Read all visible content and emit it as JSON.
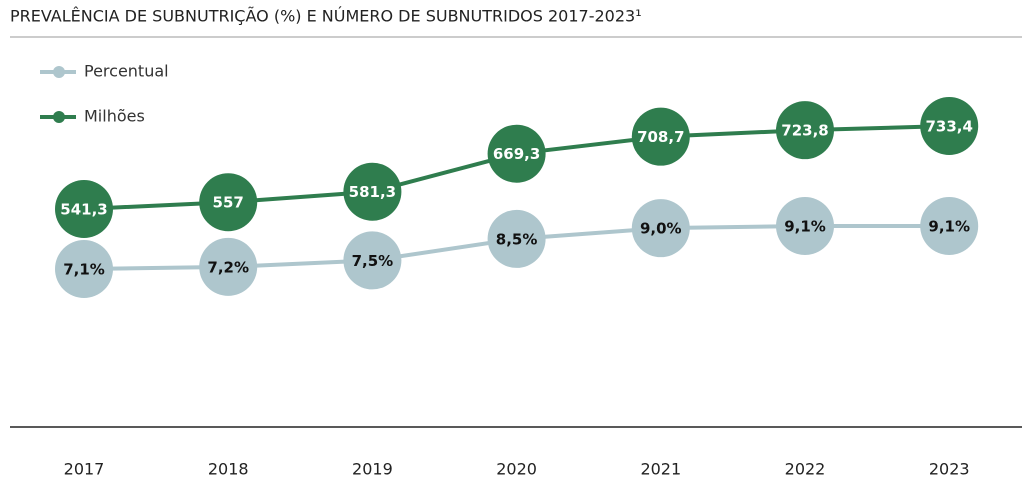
{
  "chart_data": {
    "type": "line",
    "title": "PREVALÊNCIA DE SUBNUTRIÇÃO (%) E NÚMERO DE SUBNUTRIDOS 2017-2023¹",
    "categories": [
      "2017",
      "2018",
      "2019",
      "2020",
      "2021",
      "2022",
      "2023"
    ],
    "series": [
      {
        "name": "Percentual",
        "color": "#aec6cd",
        "axis": "y2",
        "values": [
          7.1,
          7.2,
          7.5,
          8.5,
          9.0,
          9.1,
          9.1
        ],
        "value_labels": [
          "7,1%",
          "7,2%",
          "7,5%",
          "8,5%",
          "9,0%",
          "9,1%",
          "9,1%"
        ]
      },
      {
        "name": "Milhões",
        "color": "#2f7d4e",
        "values": [
          541.3,
          557,
          581.3,
          669.3,
          708.7,
          723.8,
          733.4
        ],
        "value_labels": [
          "541,3",
          "557",
          "581,3",
          "669,3",
          "708,7",
          "723,8",
          "733,4"
        ]
      }
    ],
    "legend": "top-left"
  }
}
